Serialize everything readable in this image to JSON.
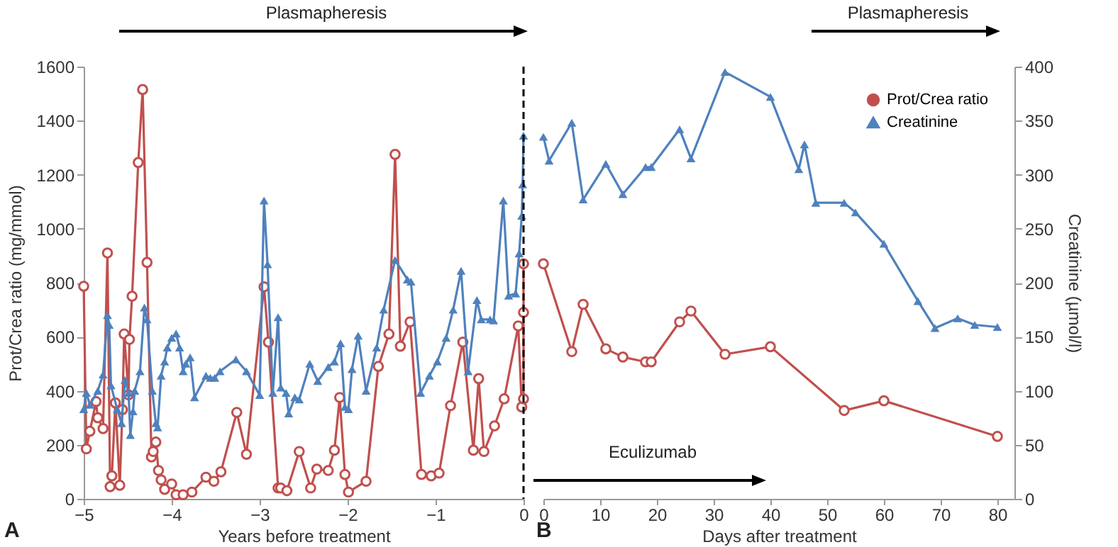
{
  "chart_data": [
    {
      "type": "line",
      "xlabel": "Years before treatment",
      "ylabel": "Prot/Crea ratio (mg/mmol)",
      "xlim": [
        -5,
        0
      ],
      "xticks": [
        -5,
        -4,
        -3,
        -2,
        -1,
        0
      ],
      "ylim": [
        0,
        1600
      ],
      "yticks": [
        0,
        200,
        400,
        600,
        800,
        1000,
        1200,
        1400,
        1600
      ],
      "y2lim": [
        0,
        400
      ],
      "tick_labels": "xy",
      "legend": false,
      "line_style": "solid",
      "annotations": [
        "Plasmapheresis",
        "A"
      ],
      "ref_lines": [
        {
          "axis": "x",
          "value": 0,
          "line_style": "dashed",
          "color": "#000000"
        }
      ],
      "series": [
        {
          "color": "#c0504d",
          "marker": "circle",
          "x": [
            -5.0,
            -4.97,
            -4.93,
            -4.86,
            -4.84,
            -4.78,
            -4.73,
            -4.7,
            -4.68,
            -4.64,
            -4.59,
            -4.56,
            -4.54,
            -4.49,
            -4.48,
            -4.45,
            -4.38,
            -4.33,
            -4.28,
            -4.23,
            -4.21,
            -4.18,
            -4.15,
            -4.12,
            -4.08,
            -4.0,
            -3.95,
            -3.87,
            -3.77,
            -3.61,
            -3.52,
            -3.44,
            -3.26,
            -3.15,
            -2.95,
            -2.9,
            -2.79,
            -2.76,
            -2.69,
            -2.55,
            -2.42,
            -2.35,
            -2.22,
            -2.15,
            -2.09,
            -2.03,
            -1.99,
            -1.79,
            -1.65,
            -1.53,
            -1.46,
            -1.4,
            -1.29,
            -1.16,
            -1.05,
            -0.96,
            -0.83,
            -0.69,
            -0.57,
            -0.51,
            -0.45,
            -0.33,
            -0.22,
            -0.06,
            -0.02,
            0,
            0,
            0
          ],
          "values": [
            787,
            185,
            250,
            360,
            300,
            260,
            910,
            45,
            85,
            355,
            50,
            330,
            610,
            385,
            590,
            750,
            1245,
            1515,
            875,
            155,
            175,
            210,
            105,
            70,
            35,
            55,
            15,
            15,
            25,
            80,
            65,
            100,
            320,
            165,
            785,
            580,
            40,
            40,
            30,
            175,
            40,
            110,
            105,
            180,
            375,
            90,
            25,
            65,
            490,
            610,
            1275,
            565,
            655,
            90,
            85,
            95,
            345,
            580,
            180,
            445,
            175,
            270,
            370,
            640,
            340,
            370,
            690,
            870
          ]
        },
        {
          "color": "#4f81bd",
          "marker": "triangle",
          "axis": "y2",
          "x": [
            -5.0,
            -4.97,
            -4.93,
            -4.84,
            -4.78,
            -4.73,
            -4.71,
            -4.69,
            -4.62,
            -4.57,
            -4.53,
            -4.49,
            -4.47,
            -4.44,
            -4.42,
            -4.36,
            -4.31,
            -4.28,
            -4.22,
            -4.18,
            -4.16,
            -4.12,
            -4.08,
            -4.05,
            -4.0,
            -3.95,
            -3.91,
            -3.87,
            -3.84,
            -3.79,
            -3.74,
            -3.61,
            -3.56,
            -3.51,
            -3.45,
            -3.27,
            -3.15,
            -3.0,
            -2.95,
            -2.91,
            -2.85,
            -2.79,
            -2.76,
            -2.7,
            -2.67,
            -2.6,
            -2.55,
            -2.43,
            -2.34,
            -2.22,
            -2.15,
            -2.08,
            -2.03,
            -1.99,
            -1.95,
            -1.88,
            -1.79,
            -1.67,
            -1.59,
            -1.46,
            -1.32,
            -1.28,
            -1.17,
            -1.07,
            -0.98,
            -0.88,
            -0.8,
            -0.71,
            -0.63,
            -0.53,
            -0.48,
            -0.38,
            -0.34,
            -0.23,
            -0.17,
            -0.09,
            -0.05,
            -0.02,
            -0.01,
            0
          ],
          "values": [
            83,
            98,
            87,
            100,
            115,
            170,
            161,
            105,
            83,
            70,
            110,
            98,
            59,
            81,
            100,
            118,
            177,
            166,
            100,
            70,
            66,
            114,
            127,
            140,
            149,
            153,
            140,
            118,
            125,
            131,
            94,
            114,
            112,
            112,
            118,
            129,
            118,
            96,
            276,
            217,
            98,
            168,
            103,
            98,
            79,
            94,
            92,
            125,
            109,
            122,
            127,
            144,
            85,
            83,
            120,
            151,
            100,
            140,
            175,
            221,
            203,
            201,
            98,
            114,
            127,
            149,
            175,
            211,
            118,
            184,
            166,
            166,
            165,
            276,
            188,
            190,
            227,
            262,
            291,
            336
          ]
        }
      ]
    },
    {
      "type": "line",
      "xlabel": "Days after treatment",
      "y2label": "Creatinine (µmol/l)",
      "xlim": [
        0,
        83
      ],
      "xticks": [
        0,
        10,
        20,
        30,
        40,
        50,
        60,
        70,
        80
      ],
      "ylim": [
        0,
        1600
      ],
      "y2lim": [
        0,
        400
      ],
      "y2ticks": [
        0,
        50,
        100,
        150,
        200,
        250,
        300,
        350,
        400
      ],
      "tick_labels": "xy2",
      "legend": "top right",
      "line_style": "solid",
      "annotations": [
        "Plasmapheresis",
        "Eculizumab",
        "B"
      ],
      "series": [
        {
          "name": "Prot/Crea ratio",
          "color": "#c0504d",
          "marker": "circle",
          "x": [
            0,
            5,
            7,
            11,
            14,
            18,
            19,
            24,
            26,
            32,
            40,
            53,
            60,
            80
          ],
          "values": [
            870,
            545,
            720,
            555,
            525,
            507,
            507,
            655,
            695,
            535,
            563,
            327,
            363,
            231
          ]
        },
        {
          "name": "Creatinine",
          "color": "#4f81bd",
          "marker": "triangle",
          "axis": "y2",
          "x": [
            0,
            1,
            5,
            7,
            11,
            14,
            18,
            19,
            24,
            26,
            32,
            40,
            45,
            46,
            48,
            53,
            55,
            60,
            66,
            69,
            73,
            76,
            80
          ],
          "values": [
            335,
            313,
            348,
            277,
            310,
            282,
            307,
            307,
            342,
            315,
            395,
            372,
            305,
            328,
            274,
            274,
            265,
            236,
            183,
            158,
            167,
            161,
            159
          ]
        }
      ]
    }
  ]
}
